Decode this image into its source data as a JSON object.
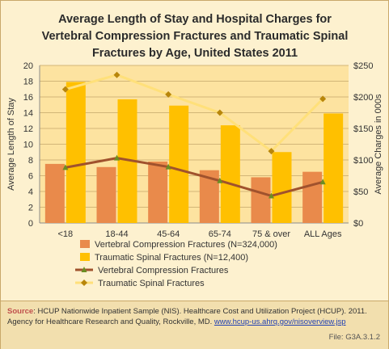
{
  "title_lines": [
    "Average Length of Stay and Hospital Charges for",
    "Vertebral Compression Fractures and Traumatic Spinal",
    "Fractures by Age, United States 2011"
  ],
  "footer": {
    "source_label": "Source",
    "source_text": ": HCUP Nationwide Inpatient Sample (NIS). Healthcare Cost and Utilization Project (HCUP). 2011. Agency for Healthcare Research and Quality, Rockville, MD. ",
    "source_link": "www.hcup-us.ahrq.gov/nisoverview.jsp",
    "file_code": "File:  G3A.3.1.2"
  },
  "chart_data": {
    "type": "bar",
    "combo": "bar+line, dual y-axis",
    "categories": [
      "<18",
      "18-44",
      "45-64",
      "65-74",
      "75 & over",
      "ALL Ages"
    ],
    "ylabel": "Average Length of Stay",
    "y2label": "Average Charges in 000s",
    "ylim": [
      0,
      20
    ],
    "y_ticks": [
      "0",
      "2",
      "4",
      "6",
      "8",
      "10",
      "12",
      "14",
      "16",
      "18",
      "20"
    ],
    "y2lim": [
      0,
      250
    ],
    "y2_ticks": [
      "$0",
      "$50",
      "$100",
      "$150",
      "$200",
      "$250"
    ],
    "grid": true,
    "legend_position": "bottom",
    "bar_series": [
      {
        "name": "Vertebral Compression Fractures (N=324,000)",
        "values": [
          7.5,
          7.1,
          7.8,
          6.7,
          5.8,
          6.5
        ],
        "axis": "left",
        "color": "#e98a4b"
      },
      {
        "name": "Traumatic Spinal Fractures (N=12,400)",
        "values": [
          17.9,
          15.7,
          14.9,
          12.4,
          9.0,
          13.9
        ],
        "axis": "left",
        "color": "#ffc000"
      }
    ],
    "line_series": [
      {
        "name": "Vertebral Compression Fractures",
        "values": [
          88,
          103,
          89,
          67,
          43,
          65
        ],
        "axis": "right",
        "color": "#a0522d",
        "marker": "triangle"
      },
      {
        "name": "Traumatic Spinal Fractures",
        "values": [
          212,
          235,
          204,
          175,
          114,
          197
        ],
        "axis": "right",
        "color": "#ffe07a",
        "marker": "diamond"
      }
    ]
  }
}
